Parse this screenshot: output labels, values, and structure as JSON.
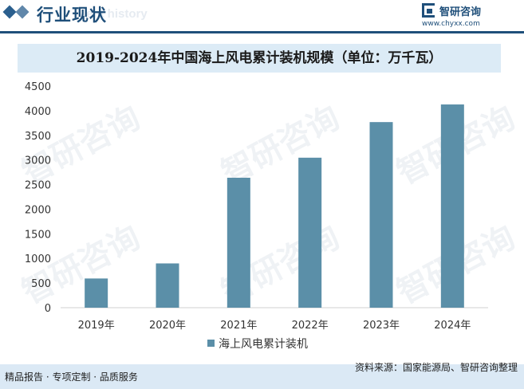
{
  "header": {
    "title": "行业现状",
    "subtitle_en": "ent history",
    "logo_name": "智研咨询",
    "logo_url": "www.chyxx.com"
  },
  "watermark": "智研咨询",
  "footer": {
    "left": "精品报告 · 专项定制 · 品质服务",
    "source": "资料来源：国家能源局、智研咨询整理"
  },
  "colors": {
    "bar": "#5b8fa8",
    "header": "#1f4f7a",
    "title_band": "#dcebf6",
    "footer_band": "#dbe9f5"
  },
  "chart_data": {
    "type": "bar",
    "title": "2019-2024年中国海上风电累计装机规模（单位：万千瓦）",
    "categories": [
      "2019年",
      "2020年",
      "2021年",
      "2022年",
      "2023年",
      "2024年"
    ],
    "series": [
      {
        "name": "海上风电累计装机",
        "values": [
          593,
          899,
          2639,
          3046,
          3769,
          4127
        ]
      }
    ],
    "yticks": [
      0,
      500,
      1000,
      1500,
      2000,
      2500,
      3000,
      3500,
      4000,
      4500
    ],
    "ylim": [
      0,
      4500
    ],
    "grid": false,
    "legend": "bottom"
  }
}
